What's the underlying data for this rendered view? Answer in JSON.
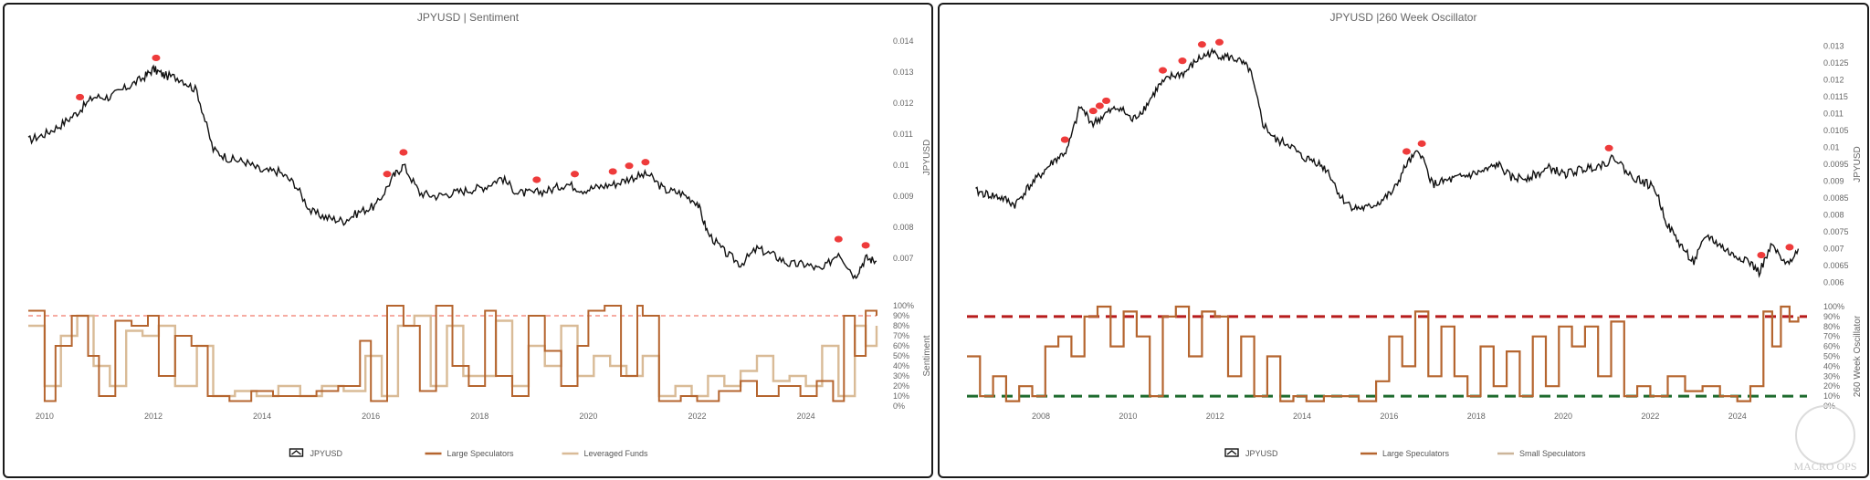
{
  "colors": {
    "price": "#111111",
    "large_specs": "#b5652f",
    "leveraged": "#d9bb97",
    "small_specs": "#ccb59a",
    "signal": "#ee3b3b",
    "extreme_line_salmon": "#f07a6a",
    "extreme_line_red": "#b71c1c",
    "extreme_line_green": "#1e6b2e"
  },
  "watermark": "MACRO OPS",
  "chart_data": [
    {
      "type": "line",
      "title": "JPYUSD | Sentiment",
      "y1label": "JPYUSD",
      "y2label": "Sentiment",
      "xticks": [
        "2010",
        "2012",
        "2014",
        "2016",
        "2018",
        "2020",
        "2022",
        "2024"
      ],
      "xlim": [
        2009.7,
        2025.3
      ],
      "y1ticks": [
        "0.014",
        "0.013",
        "0.012",
        "0.011",
        "0.01",
        "0.009",
        "0.008",
        "0.007"
      ],
      "y1ticks_vals": [
        0.014,
        0.013,
        0.012,
        0.011,
        0.01,
        0.009,
        0.008,
        0.007
      ],
      "y1lim": [
        0.0062,
        0.0143
      ],
      "y2ticks": [
        "100%",
        "90%",
        "80%",
        "70%",
        "60%",
        "50%",
        "40%",
        "30%",
        "20%",
        "10%",
        "0%"
      ],
      "extreme_lines": [
        {
          "y": 0.9,
          "style": "dashed",
          "color_key": "extreme_line_salmon"
        }
      ],
      "legend": [
        {
          "label": "JPYUSD",
          "color_key": "price"
        },
        {
          "label": "Large Speculators",
          "color_key": "large_specs"
        },
        {
          "label": "Leveraged Funds",
          "color_key": "leveraged"
        }
      ],
      "series": [
        {
          "name": "JPYUSD",
          "x": [
            2009.7,
            2010.0,
            2010.3,
            2010.6,
            2010.9,
            2011.2,
            2011.5,
            2011.8,
            2012.0,
            2012.2,
            2012.5,
            2012.8,
            2013.1,
            2013.4,
            2013.7,
            2014.0,
            2014.3,
            2014.6,
            2014.9,
            2015.2,
            2015.5,
            2015.8,
            2016.1,
            2016.4,
            2016.6,
            2016.9,
            2017.2,
            2017.5,
            2017.8,
            2018.1,
            2018.4,
            2018.7,
            2019.0,
            2019.3,
            2019.6,
            2019.9,
            2020.2,
            2020.5,
            2020.8,
            2021.1,
            2021.4,
            2021.7,
            2022.0,
            2022.2,
            2022.5,
            2022.8,
            2023.1,
            2023.4,
            2023.7,
            2024.0,
            2024.3,
            2024.6,
            2024.9,
            2025.1,
            2025.3
          ],
          "values": [
            0.0108,
            0.011,
            0.0113,
            0.0117,
            0.0122,
            0.0122,
            0.0125,
            0.0128,
            0.0131,
            0.0129,
            0.0128,
            0.0124,
            0.0105,
            0.0102,
            0.0101,
            0.0098,
            0.0098,
            0.0094,
            0.0085,
            0.0083,
            0.0082,
            0.0085,
            0.0087,
            0.0096,
            0.01,
            0.0091,
            0.009,
            0.0091,
            0.0092,
            0.0093,
            0.0096,
            0.0091,
            0.0091,
            0.0092,
            0.0094,
            0.0092,
            0.0093,
            0.0094,
            0.0096,
            0.0097,
            0.0092,
            0.0091,
            0.0088,
            0.0078,
            0.0072,
            0.0068,
            0.0073,
            0.0071,
            0.0068,
            0.0068,
            0.0066,
            0.0072,
            0.0064,
            0.007,
            0.0069
          ]
        },
        {
          "name": "Large Speculators",
          "x": [
            2009.7,
            2010.0,
            2010.2,
            2010.5,
            2010.8,
            2011.0,
            2011.3,
            2011.6,
            2011.9,
            2012.1,
            2012.4,
            2012.7,
            2013.0,
            2013.4,
            2013.8,
            2014.2,
            2014.6,
            2015.0,
            2015.4,
            2015.8,
            2016.0,
            2016.3,
            2016.6,
            2016.9,
            2017.2,
            2017.5,
            2017.8,
            2018.1,
            2018.3,
            2018.6,
            2018.9,
            2019.2,
            2019.5,
            2019.8,
            2020.0,
            2020.3,
            2020.6,
            2020.9,
            2021.0,
            2021.3,
            2021.7,
            2022.0,
            2022.4,
            2022.8,
            2023.1,
            2023.5,
            2023.9,
            2024.2,
            2024.5,
            2024.7,
            2024.9,
            2025.1,
            2025.3
          ],
          "values": [
            0.95,
            0.05,
            0.6,
            0.9,
            0.5,
            0.1,
            0.85,
            0.8,
            0.9,
            0.3,
            0.7,
            0.6,
            0.1,
            0.05,
            0.15,
            0.1,
            0.1,
            0.15,
            0.2,
            0.65,
            0.05,
            1.0,
            0.8,
            0.15,
            1.0,
            0.4,
            0.2,
            0.95,
            0.3,
            0.1,
            0.9,
            0.55,
            0.2,
            0.6,
            0.95,
            1.0,
            0.3,
            1.0,
            0.9,
            0.05,
            0.1,
            0.05,
            0.15,
            0.25,
            0.1,
            0.2,
            0.1,
            0.25,
            0.05,
            0.9,
            0.5,
            0.95,
            0.9
          ]
        },
        {
          "name": "Leveraged Funds",
          "x": [
            2009.7,
            2010.0,
            2010.3,
            2010.6,
            2010.9,
            2011.2,
            2011.5,
            2011.8,
            2012.1,
            2012.4,
            2012.8,
            2013.1,
            2013.5,
            2013.9,
            2014.3,
            2014.7,
            2015.1,
            2015.5,
            2015.9,
            2016.2,
            2016.5,
            2016.8,
            2017.1,
            2017.4,
            2017.7,
            2018.0,
            2018.3,
            2018.6,
            2018.9,
            2019.2,
            2019.5,
            2019.8,
            2020.1,
            2020.4,
            2020.7,
            2021.0,
            2021.3,
            2021.6,
            2021.9,
            2022.2,
            2022.5,
            2022.8,
            2023.1,
            2023.4,
            2023.7,
            2024.0,
            2024.3,
            2024.6,
            2024.9,
            2025.1,
            2025.3
          ],
          "values": [
            0.8,
            0.2,
            0.7,
            0.9,
            0.4,
            0.2,
            0.75,
            0.7,
            0.8,
            0.2,
            0.6,
            0.1,
            0.15,
            0.1,
            0.2,
            0.1,
            0.2,
            0.15,
            0.5,
            0.1,
            0.8,
            0.9,
            0.2,
            0.8,
            0.3,
            0.3,
            0.85,
            0.2,
            0.6,
            0.4,
            0.8,
            0.3,
            0.5,
            0.4,
            0.3,
            0.5,
            0.1,
            0.2,
            0.1,
            0.3,
            0.2,
            0.35,
            0.5,
            0.25,
            0.3,
            0.2,
            0.6,
            0.1,
            0.8,
            0.6,
            0.8
          ]
        }
      ],
      "signals": [
        2010.65,
        2012.05,
        2016.3,
        2016.6,
        2019.05,
        2019.75,
        2020.45,
        2020.75,
        2021.05,
        2024.6,
        2025.1
      ]
    },
    {
      "type": "line",
      "title": "JPYUSD |260 Week Oscillator",
      "y1label": "JPYUSD",
      "y2label": "260 Week Oscillator",
      "xticks": [
        "2008",
        "2010",
        "2012",
        "2014",
        "2016",
        "2018",
        "2020",
        "2022",
        "2024"
      ],
      "xlim": [
        2006.3,
        2025.6
      ],
      "y1ticks": [
        "0.013",
        "0.0125",
        "0.012",
        "0.0115",
        "0.011",
        "0.0105",
        "0.01",
        "0.0095",
        "0.009",
        "0.0085",
        "0.008",
        "0.0075",
        "0.007",
        "0.0065",
        "0.006"
      ],
      "y1ticks_vals": [
        0.013,
        0.0125,
        0.012,
        0.0115,
        0.011,
        0.0105,
        0.01,
        0.0095,
        0.009,
        0.0085,
        0.008,
        0.0075,
        0.007,
        0.0065,
        0.006
      ],
      "y1lim": [
        0.0058,
        0.0132
      ],
      "y2ticks": [
        "100%",
        "90%",
        "80%",
        "70%",
        "60%",
        "50%",
        "40%",
        "30%",
        "20%",
        "10%",
        "0%"
      ],
      "extreme_lines": [
        {
          "y": 0.9,
          "style": "dashed",
          "color_key": "extreme_line_red"
        },
        {
          "y": 0.1,
          "style": "dashed",
          "color_key": "extreme_line_green"
        }
      ],
      "legend": [
        {
          "label": "JPYUSD",
          "color_key": "price"
        },
        {
          "label": "Large Speculators",
          "color_key": "large_specs"
        },
        {
          "label": "Small Speculators",
          "color_key": "small_specs"
        }
      ],
      "series": [
        {
          "name": "JPYUSD",
          "x": [
            2006.5,
            2006.8,
            2007.1,
            2007.4,
            2007.7,
            2008.0,
            2008.3,
            2008.6,
            2008.9,
            2009.2,
            2009.5,
            2009.8,
            2010.1,
            2010.4,
            2010.7,
            2011.0,
            2011.3,
            2011.6,
            2011.9,
            2012.2,
            2012.5,
            2012.8,
            2013.1,
            2013.4,
            2013.7,
            2014.0,
            2014.3,
            2014.6,
            2014.9,
            2015.2,
            2015.5,
            2015.8,
            2016.1,
            2016.4,
            2016.7,
            2017.0,
            2017.3,
            2017.6,
            2017.9,
            2018.2,
            2018.5,
            2018.8,
            2019.1,
            2019.4,
            2019.7,
            2020.0,
            2020.3,
            2020.6,
            2020.9,
            2021.2,
            2021.5,
            2021.8,
            2022.1,
            2022.4,
            2022.7,
            2023.0,
            2023.3,
            2023.6,
            2023.9,
            2024.2,
            2024.5,
            2024.8,
            2025.1,
            2025.4
          ],
          "values": [
            0.0087,
            0.0086,
            0.0085,
            0.0083,
            0.0088,
            0.0092,
            0.0096,
            0.0099,
            0.0112,
            0.0107,
            0.011,
            0.0112,
            0.0108,
            0.0112,
            0.0118,
            0.0121,
            0.0122,
            0.0126,
            0.0128,
            0.0127,
            0.0126,
            0.0123,
            0.0107,
            0.0102,
            0.0101,
            0.0097,
            0.0096,
            0.0093,
            0.0085,
            0.0082,
            0.0082,
            0.0084,
            0.0087,
            0.0095,
            0.0099,
            0.0089,
            0.009,
            0.0091,
            0.0092,
            0.0093,
            0.0095,
            0.0091,
            0.0091,
            0.0092,
            0.0094,
            0.0092,
            0.0093,
            0.0094,
            0.0095,
            0.0097,
            0.0092,
            0.009,
            0.0088,
            0.0077,
            0.0071,
            0.0066,
            0.0074,
            0.0071,
            0.0068,
            0.0067,
            0.0063,
            0.0071,
            0.0065,
            0.007
          ]
        },
        {
          "name": "Large Speculators",
          "x": [
            2006.3,
            2006.6,
            2006.9,
            2007.2,
            2007.5,
            2007.8,
            2008.1,
            2008.4,
            2008.7,
            2009.0,
            2009.3,
            2009.6,
            2009.9,
            2010.2,
            2010.5,
            2010.8,
            2011.1,
            2011.4,
            2011.7,
            2012.0,
            2012.3,
            2012.6,
            2012.9,
            2013.2,
            2013.5,
            2013.8,
            2014.1,
            2014.5,
            2014.9,
            2015.3,
            2015.7,
            2016.0,
            2016.3,
            2016.6,
            2016.9,
            2017.2,
            2017.5,
            2017.8,
            2018.1,
            2018.4,
            2018.7,
            2019.0,
            2019.3,
            2019.6,
            2019.9,
            2020.2,
            2020.5,
            2020.8,
            2021.1,
            2021.4,
            2021.7,
            2022.0,
            2022.4,
            2022.8,
            2023.2,
            2023.6,
            2024.0,
            2024.3,
            2024.6,
            2024.8,
            2025.0,
            2025.2,
            2025.4
          ],
          "values": [
            0.5,
            0.1,
            0.3,
            0.05,
            0.2,
            0.1,
            0.6,
            0.7,
            0.5,
            0.9,
            1.0,
            0.6,
            0.95,
            0.7,
            0.1,
            0.9,
            1.0,
            0.5,
            0.95,
            0.9,
            0.3,
            0.7,
            0.1,
            0.5,
            0.05,
            0.1,
            0.05,
            0.1,
            0.1,
            0.05,
            0.25,
            0.7,
            0.4,
            0.95,
            0.3,
            0.8,
            0.3,
            0.1,
            0.6,
            0.2,
            0.55,
            0.1,
            0.7,
            0.2,
            0.8,
            0.6,
            0.8,
            0.3,
            0.85,
            0.1,
            0.2,
            0.1,
            0.3,
            0.15,
            0.2,
            0.1,
            0.05,
            0.2,
            0.95,
            0.6,
            1.0,
            0.85,
            0.9
          ]
        }
      ],
      "signals": [
        2008.55,
        2009.2,
        2009.35,
        2009.5,
        2010.8,
        2011.25,
        2011.7,
        2012.1,
        2016.4,
        2016.75,
        2021.05,
        2024.55,
        2025.2
      ]
    }
  ]
}
